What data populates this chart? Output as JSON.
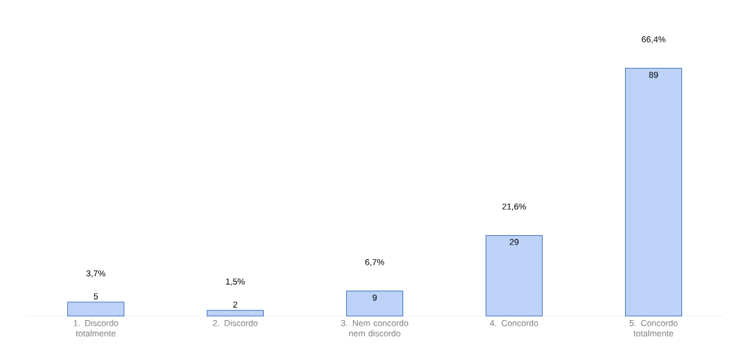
{
  "chart_data": {
    "type": "bar",
    "categories": [
      "1. Discordo totalmente",
      "2. Discordo",
      "3. Nem concordo nem discordo",
      "4. Concordo",
      "5. Concordo totalmente"
    ],
    "values": [
      3.7,
      1.5,
      6.7,
      21.6,
      66.4
    ],
    "color": "#bcd3f7",
    "value_labels": [
      "3,7%",
      "1,5%",
      "6,7%",
      "21,6%",
      "66,4%"
    ],
    "annotations": [
      "5",
      "2",
      "9",
      "29",
      "89"
    ]
  }
}
